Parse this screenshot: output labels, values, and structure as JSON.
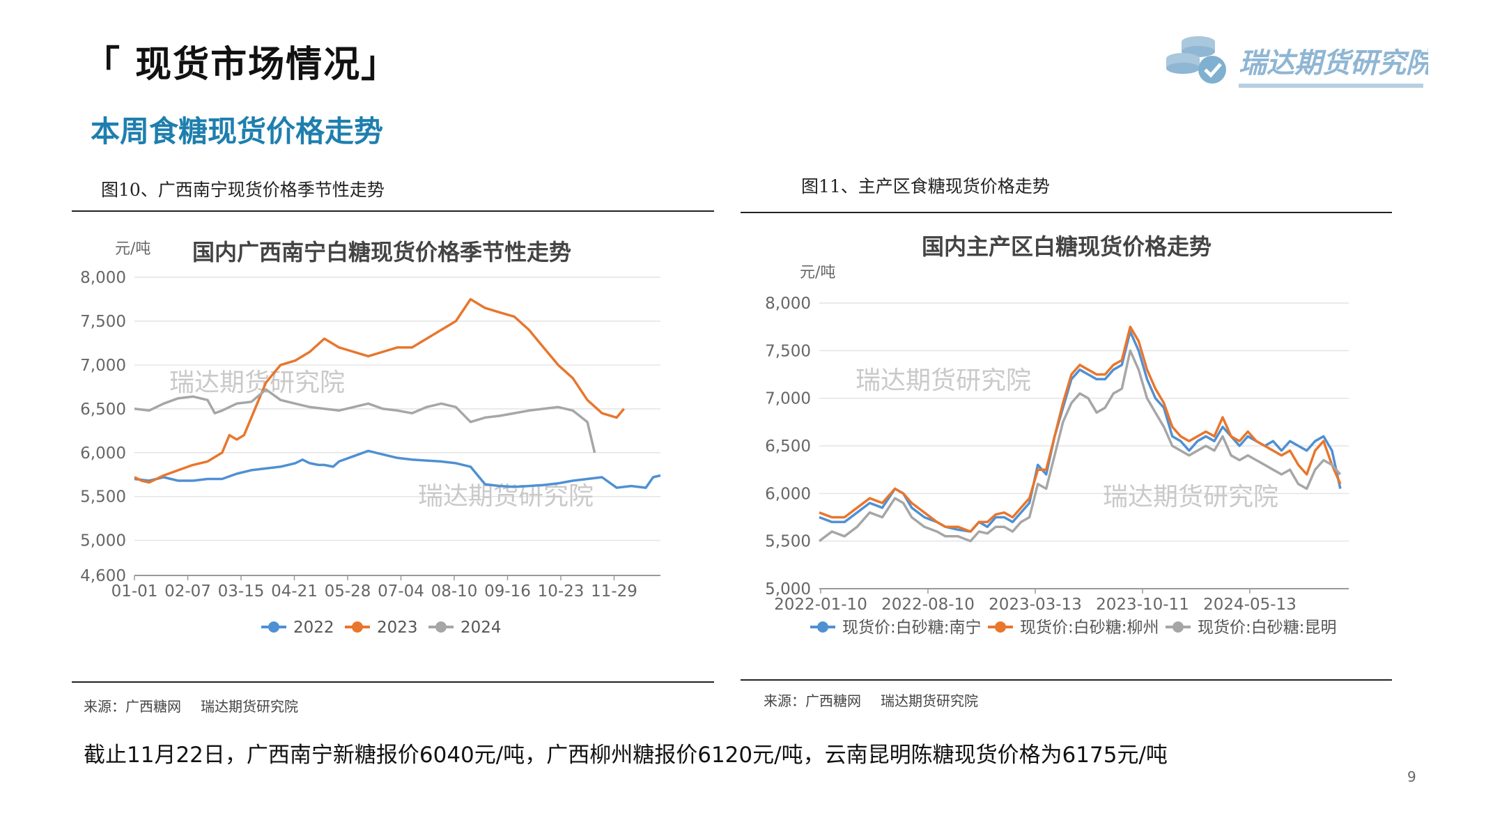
{
  "header": {
    "section_title": "「 现货市场情况」",
    "subtitle": "本周食糖现货价格走势",
    "logo_text": "瑞达期货研究院"
  },
  "figures": [
    {
      "caption": "图10、广西南宁现货价格季节性走势",
      "source": "来源：广西糖网",
      "source_org": "瑞达期货研究院"
    },
    {
      "caption": "图11、主产区食糖现货价格走势",
      "source": "来源：广西糖网",
      "source_org": "瑞达期货研究院"
    }
  ],
  "summary": "截止11月22日，广西南宁新糖报价6040元/吨，广西柳州糖报价6120元/吨，云南昆明陈糖现货价格为6175元/吨",
  "page_number": "9",
  "colors": {
    "blue": "#4f90d3",
    "orange": "#e8762d",
    "gray": "#a6a6a6",
    "title_blue": "#1e7fae"
  },
  "chart_data": [
    {
      "type": "line",
      "title": "国内广西南宁白糖现货价格季节性走势",
      "ylabel": "元/吨",
      "ylim": [
        4600,
        8000
      ],
      "yticks": [
        "8,000",
        "7,500",
        "7,000",
        "6,500",
        "6,000",
        "5,500",
        "5,000",
        "4,600"
      ],
      "ytick_values": [
        8000,
        7500,
        7000,
        6500,
        6000,
        5500,
        5000,
        4600
      ],
      "categories": [
        "01-01",
        "02-07",
        "03-15",
        "04-21",
        "05-28",
        "07-04",
        "08-10",
        "09-16",
        "10-23",
        "11-29"
      ],
      "watermark": "瑞达期货研究院",
      "series": [
        {
          "name": "2022",
          "color": "#4f90d3",
          "x": [
            0,
            10,
            20,
            30,
            40,
            50,
            60,
            70,
            80,
            90,
            100,
            110,
            115,
            120,
            126,
            130,
            136,
            140,
            150,
            160,
            170,
            180,
            190,
            200,
            210,
            220,
            230,
            240,
            250,
            260,
            270,
            280,
            290,
            300,
            310,
            320,
            330,
            340,
            350,
            355,
            360
          ],
          "values": [
            5700,
            5680,
            5720,
            5680,
            5680,
            5700,
            5700,
            5760,
            5800,
            5820,
            5840,
            5880,
            5920,
            5880,
            5860,
            5860,
            5840,
            5900,
            5960,
            6020,
            5980,
            5940,
            5920,
            5910,
            5900,
            5880,
            5840,
            5640,
            5620,
            5610,
            5620,
            5630,
            5650,
            5680,
            5700,
            5720,
            5600,
            5620,
            5600,
            5720,
            5740
          ]
        },
        {
          "name": "2023",
          "color": "#e8762d",
          "x": [
            0,
            5,
            10,
            20,
            30,
            40,
            50,
            60,
            65,
            70,
            75,
            80,
            85,
            90,
            95,
            100,
            110,
            120,
            130,
            140,
            150,
            160,
            170,
            180,
            190,
            200,
            210,
            220,
            230,
            240,
            250,
            260,
            270,
            280,
            290,
            300,
            310,
            320,
            330,
            335
          ],
          "values": [
            5720,
            5680,
            5660,
            5740,
            5800,
            5860,
            5900,
            6000,
            6200,
            6150,
            6200,
            6400,
            6600,
            6800,
            6900,
            7000,
            7050,
            7150,
            7300,
            7200,
            7150,
            7100,
            7150,
            7200,
            7200,
            7300,
            7400,
            7500,
            7750,
            7650,
            7600,
            7550,
            7400,
            7200,
            7000,
            6850,
            6600,
            6450,
            6400,
            6500
          ]
        },
        {
          "name": "2024",
          "color": "#a6a6a6",
          "x": [
            0,
            10,
            20,
            30,
            40,
            50,
            55,
            60,
            70,
            80,
            90,
            100,
            110,
            120,
            130,
            140,
            150,
            160,
            170,
            180,
            190,
            200,
            210,
            220,
            230,
            240,
            250,
            260,
            270,
            280,
            290,
            300,
            310,
            315
          ],
          "values": [
            6500,
            6480,
            6560,
            6620,
            6640,
            6600,
            6450,
            6480,
            6560,
            6580,
            6720,
            6600,
            6560,
            6520,
            6500,
            6480,
            6520,
            6560,
            6500,
            6480,
            6450,
            6520,
            6560,
            6520,
            6350,
            6400,
            6420,
            6450,
            6480,
            6500,
            6520,
            6480,
            6350,
            6000
          ]
        }
      ]
    },
    {
      "type": "line",
      "title": "国内主产区白糖现货价格走势",
      "ylabel": "元/吨",
      "ylim": [
        5000,
        8000
      ],
      "yticks": [
        "8,000",
        "7,500",
        "7,000",
        "6,500",
        "6,000",
        "5,500",
        "5,000"
      ],
      "ytick_values": [
        8000,
        7500,
        7000,
        6500,
        6000,
        5500,
        5000
      ],
      "categories": [
        "2022-01-10",
        "2022-08-10",
        "2023-03-13",
        "2023-10-11",
        "2024-05-13"
      ],
      "watermark": "瑞达期货研究院",
      "series": [
        {
          "name": "现货价:白砂糖:南宁",
          "color": "#4f90d3",
          "x": [
            0,
            6,
            12,
            18,
            24,
            30,
            36,
            40,
            44,
            50,
            56,
            60,
            66,
            72,
            76,
            80,
            84,
            88,
            92,
            96,
            100,
            104,
            108,
            112,
            116,
            120,
            124,
            128,
            132,
            136,
            140,
            144,
            148,
            152,
            156,
            160,
            164,
            168,
            172,
            176,
            180,
            184,
            188,
            192,
            196,
            200,
            204,
            208,
            212,
            216,
            220,
            224,
            228,
            232,
            236,
            240,
            244,
            248
          ],
          "values": [
            5750,
            5700,
            5700,
            5800,
            5900,
            5850,
            6050,
            6000,
            5850,
            5750,
            5700,
            5650,
            5620,
            5600,
            5700,
            5650,
            5750,
            5750,
            5700,
            5800,
            5900,
            6300,
            6200,
            6600,
            6900,
            7200,
            7300,
            7250,
            7200,
            7200,
            7300,
            7350,
            7700,
            7500,
            7200,
            7000,
            6900,
            6600,
            6550,
            6450,
            6550,
            6600,
            6550,
            6700,
            6600,
            6500,
            6600,
            6550,
            6500,
            6550,
            6450,
            6550,
            6500,
            6450,
            6550,
            6600,
            6450,
            6050
          ]
        },
        {
          "name": "现货价:白砂糖:柳州",
          "color": "#e8762d",
          "x": [
            0,
            6,
            12,
            18,
            24,
            30,
            36,
            40,
            44,
            50,
            56,
            60,
            66,
            72,
            76,
            80,
            84,
            88,
            92,
            96,
            100,
            104,
            108,
            112,
            116,
            120,
            124,
            128,
            132,
            136,
            140,
            144,
            148,
            152,
            156,
            160,
            164,
            168,
            172,
            176,
            180,
            184,
            188,
            192,
            196,
            200,
            204,
            208,
            212,
            216,
            220,
            224,
            228,
            232,
            236,
            240,
            244,
            248
          ],
          "values": [
            5800,
            5750,
            5750,
            5850,
            5950,
            5900,
            6050,
            6000,
            5900,
            5800,
            5700,
            5650,
            5650,
            5600,
            5700,
            5700,
            5780,
            5800,
            5750,
            5850,
            5950,
            6250,
            6250,
            6600,
            6950,
            7250,
            7350,
            7300,
            7250,
            7250,
            7350,
            7400,
            7750,
            7600,
            7300,
            7100,
            6950,
            6700,
            6600,
            6550,
            6600,
            6650,
            6600,
            6800,
            6600,
            6550,
            6650,
            6550,
            6500,
            6450,
            6400,
            6450,
            6300,
            6200,
            6450,
            6550,
            6300,
            6100
          ]
        },
        {
          "name": "现货价:白砂糖:昆明",
          "color": "#a6a6a6",
          "x": [
            0,
            6,
            12,
            18,
            24,
            30,
            36,
            40,
            44,
            50,
            56,
            60,
            66,
            72,
            76,
            80,
            84,
            88,
            92,
            96,
            100,
            104,
            108,
            112,
            116,
            120,
            124,
            128,
            132,
            136,
            140,
            144,
            148,
            152,
            156,
            160,
            164,
            168,
            172,
            176,
            180,
            184,
            188,
            192,
            196,
            200,
            204,
            208,
            212,
            216,
            220,
            224,
            228,
            232,
            236,
            240,
            244,
            248
          ],
          "values": [
            5500,
            5600,
            5550,
            5650,
            5800,
            5750,
            5950,
            5900,
            5750,
            5650,
            5600,
            5550,
            5550,
            5500,
            5600,
            5580,
            5650,
            5650,
            5600,
            5700,
            5750,
            6100,
            6050,
            6400,
            6750,
            6950,
            7050,
            7000,
            6850,
            6900,
            7050,
            7100,
            7500,
            7300,
            7000,
            6850,
            6700,
            6500,
            6450,
            6400,
            6450,
            6500,
            6450,
            6600,
            6400,
            6350,
            6400,
            6350,
            6300,
            6250,
            6200,
            6250,
            6100,
            6050,
            6250,
            6350,
            6300,
            6200
          ]
        }
      ]
    }
  ]
}
